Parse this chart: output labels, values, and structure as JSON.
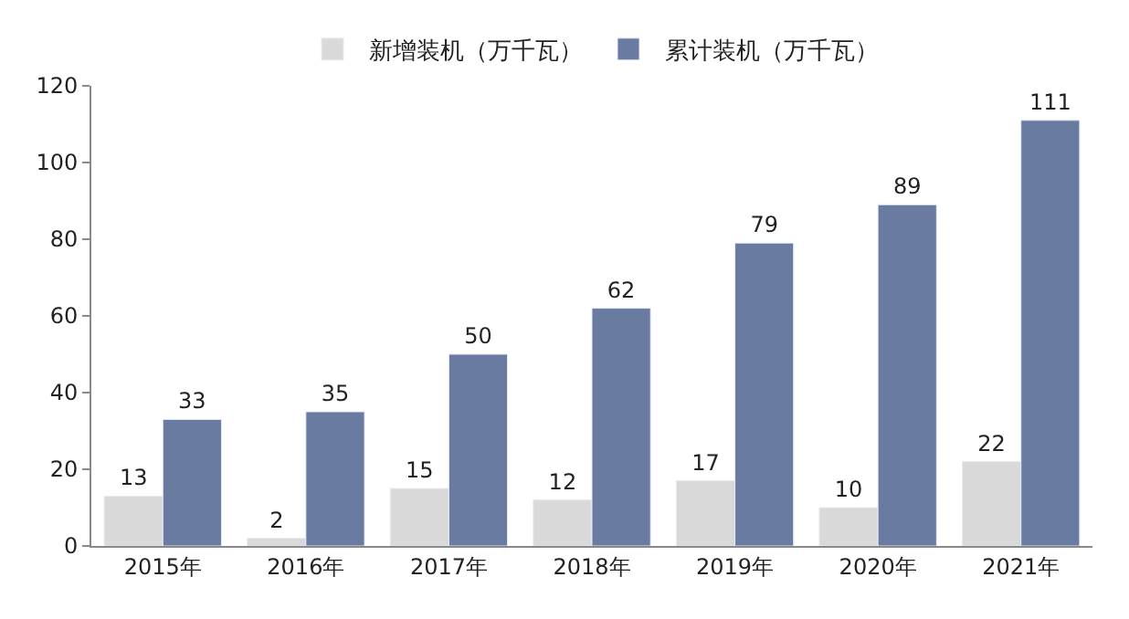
{
  "chart_data": {
    "type": "bar",
    "categories": [
      "2015年",
      "2016年",
      "2017年",
      "2018年",
      "2019年",
      "2020年",
      "2021年"
    ],
    "series": [
      {
        "name": "新增装机（万千瓦）",
        "color": "#d9d9d9",
        "values": [
          13,
          2,
          15,
          12,
          17,
          10,
          22
        ]
      },
      {
        "name": "累计装机（万千瓦）",
        "color": "#697ba1",
        "values": [
          33,
          35,
          50,
          62,
          79,
          89,
          111
        ]
      }
    ],
    "ylim": [
      0,
      120
    ],
    "yticks": [
      0,
      20,
      40,
      60,
      80,
      100,
      120
    ],
    "data_labels": true,
    "legend": "top"
  }
}
